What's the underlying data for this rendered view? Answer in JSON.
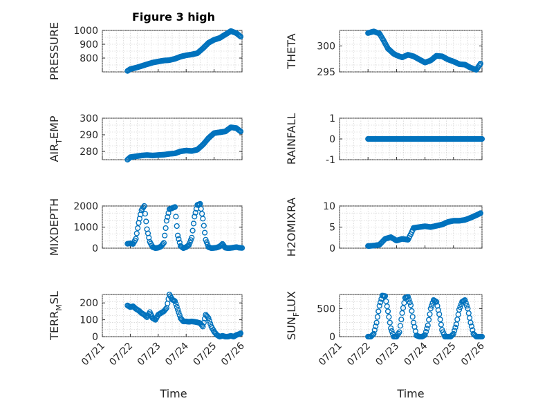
{
  "figure": {
    "title": "Figure 3 high",
    "marker_color": "#0072BD",
    "x_ticks": [
      "07/21",
      "07/22",
      "07/23",
      "07/24",
      "07/25",
      "07/26"
    ],
    "x_range_days": [
      21,
      26
    ],
    "xlabel": "Time",
    "grid": "on (major and minor)"
  },
  "chart_data": [
    {
      "id": "pressure",
      "type": "scatter",
      "ylabel_main": "PRESSURE",
      "ylabel_sub": "",
      "ylabel_tail": "",
      "ylim": [
        700,
        1000
      ],
      "yticks": [
        800,
        900,
        1000
      ],
      "x_days": [
        21.9,
        22.0,
        22.2,
        22.4,
        22.6,
        22.8,
        23.0,
        23.2,
        23.4,
        23.6,
        23.8,
        24.0,
        24.2,
        24.4,
        24.6,
        24.8,
        25.0,
        25.2,
        25.4,
        25.6,
        25.8,
        25.95
      ],
      "y": [
        707,
        720,
        730,
        742,
        755,
        767,
        775,
        782,
        785,
        795,
        810,
        820,
        826,
        835,
        870,
        910,
        932,
        945,
        970,
        995,
        980,
        955
      ]
    },
    {
      "id": "theta",
      "type": "scatter",
      "ylabel_main": "THETA",
      "ylabel_sub": "",
      "ylabel_tail": "",
      "ylim": [
        295,
        303
      ],
      "yticks": [
        295,
        300
      ],
      "x_days": [
        22.0,
        22.2,
        22.4,
        22.5,
        22.7,
        22.9,
        23.0,
        23.2,
        23.4,
        23.6,
        23.8,
        24.0,
        24.2,
        24.4,
        24.6,
        24.8,
        25.0,
        25.2,
        25.4,
        25.6,
        25.8,
        25.9,
        25.95
      ],
      "y": [
        302.5,
        302.8,
        302.4,
        301.5,
        299.5,
        298.5,
        298.2,
        297.8,
        298.3,
        298.0,
        297.4,
        296.8,
        297.2,
        298.1,
        298.0,
        297.4,
        297.0,
        296.5,
        296.4,
        295.8,
        295.4,
        296.2,
        296.6
      ]
    },
    {
      "id": "airtemp",
      "type": "scatter",
      "ylabel_main": "AIR",
      "ylabel_sub": "T",
      "ylabel_tail": "EMP",
      "ylim": [
        275,
        300
      ],
      "yticks": [
        280,
        290,
        300
      ],
      "x_days": [
        21.9,
        22.0,
        22.2,
        22.4,
        22.6,
        22.8,
        23.0,
        23.2,
        23.4,
        23.6,
        23.8,
        24.0,
        24.2,
        24.4,
        24.6,
        24.8,
        25.0,
        25.2,
        25.4,
        25.6,
        25.8,
        25.95
      ],
      "y": [
        275,
        276.5,
        277,
        277.5,
        277.8,
        277.5,
        277.8,
        278,
        278.5,
        278.8,
        280,
        280.5,
        280.2,
        281,
        284,
        288,
        291,
        291.5,
        292,
        294.5,
        294,
        292
      ]
    },
    {
      "id": "rainfall",
      "type": "scatter",
      "ylabel_main": "RAINFALL",
      "ylabel_sub": "",
      "ylabel_tail": "",
      "ylim": [
        -1,
        1
      ],
      "yticks": [
        -1,
        0,
        1
      ],
      "x_days": [
        22.0,
        22.25,
        22.5,
        22.75,
        23.0,
        23.25,
        23.5,
        23.75,
        24.0,
        24.25,
        24.5,
        24.75,
        25.0,
        25.25,
        25.5,
        25.75,
        26.0
      ],
      "y": [
        0,
        0,
        0,
        0,
        0,
        0,
        0,
        0,
        0,
        0,
        0,
        0,
        0,
        0,
        0,
        0,
        0
      ]
    },
    {
      "id": "mixdepth",
      "type": "scatter",
      "ylabel_main": "MIXDEPTH",
      "ylabel_sub": "",
      "ylabel_tail": "",
      "ylim": [
        0,
        2000
      ],
      "yticks": [
        0,
        1000,
        2000
      ],
      "x_days": [
        21.9,
        22.0,
        22.1,
        22.2,
        22.3,
        22.4,
        22.5,
        22.6,
        22.7,
        22.8,
        22.9,
        23.0,
        23.1,
        23.2,
        23.3,
        23.4,
        23.5,
        23.6,
        23.7,
        23.8,
        23.9,
        24.0,
        24.1,
        24.2,
        24.3,
        24.4,
        24.5,
        24.6,
        24.7,
        24.8,
        24.9,
        25.0,
        25.1,
        25.2,
        25.3,
        25.4,
        25.5,
        25.6,
        25.7,
        25.8,
        25.9,
        26.0
      ],
      "y": [
        210,
        230,
        200,
        450,
        1200,
        1800,
        2000,
        900,
        300,
        50,
        0,
        20,
        80,
        250,
        1300,
        1850,
        1900,
        1950,
        600,
        100,
        0,
        50,
        150,
        500,
        1500,
        2050,
        2100,
        1400,
        400,
        50,
        0,
        10,
        30,
        80,
        200,
        20,
        0,
        10,
        30,
        50,
        20,
        10
      ]
    },
    {
      "id": "h2omixra",
      "type": "scatter",
      "ylabel_main": "H2OMIXRA",
      "ylabel_sub": "",
      "ylabel_tail": "",
      "ylim": [
        0,
        10
      ],
      "yticks": [
        0,
        5,
        10
      ],
      "x_days": [
        22.0,
        22.2,
        22.4,
        22.5,
        22.6,
        22.8,
        23.0,
        23.2,
        23.4,
        23.5,
        23.6,
        23.8,
        24.0,
        24.2,
        24.4,
        24.6,
        24.8,
        25.0,
        25.2,
        25.4,
        25.6,
        25.8,
        25.95
      ],
      "y": [
        0.5,
        0.6,
        0.8,
        1.5,
        2.2,
        2.6,
        1.8,
        2.2,
        2.0,
        3.3,
        4.8,
        5.0,
        5.2,
        5.0,
        5.3,
        5.6,
        6.2,
        6.5,
        6.5,
        6.7,
        7.2,
        7.8,
        8.3
      ]
    },
    {
      "id": "terrmsl",
      "type": "scatter",
      "ylabel_main": "TERR",
      "ylabel_sub": "M",
      "ylabel_tail": "SL",
      "ylim": [
        0,
        250
      ],
      "yticks": [
        0,
        100,
        200
      ],
      "x_days": [
        21.9,
        22.0,
        22.1,
        22.2,
        22.3,
        22.4,
        22.5,
        22.6,
        22.7,
        22.8,
        22.9,
        23.0,
        23.1,
        23.2,
        23.3,
        23.4,
        23.5,
        23.6,
        23.7,
        23.8,
        23.9,
        24.0,
        24.1,
        24.2,
        24.3,
        24.4,
        24.5,
        24.6,
        24.7,
        24.8,
        24.9,
        25.0,
        25.1,
        25.2,
        25.3,
        25.4,
        25.5,
        25.6,
        25.7,
        25.8,
        25.9,
        25.95
      ],
      "y": [
        185,
        175,
        180,
        165,
        155,
        140,
        130,
        115,
        145,
        110,
        100,
        130,
        140,
        150,
        170,
        250,
        220,
        210,
        160,
        110,
        90,
        90,
        88,
        90,
        88,
        85,
        80,
        60,
        130,
        110,
        60,
        30,
        10,
        0,
        5,
        0,
        0,
        5,
        0,
        10,
        15,
        20
      ]
    },
    {
      "id": "sunflux",
      "type": "scatter",
      "ylabel_main": "SUN",
      "ylabel_sub": "F",
      "ylabel_tail": "LUX",
      "ylim": [
        0,
        750
      ],
      "yticks": [
        0,
        500
      ],
      "x_days": [
        22.0,
        22.1,
        22.2,
        22.3,
        22.4,
        22.5,
        22.6,
        22.7,
        22.8,
        22.9,
        23.0,
        23.1,
        23.2,
        23.3,
        23.4,
        23.5,
        23.6,
        23.7,
        23.8,
        23.9,
        24.0,
        24.1,
        24.2,
        24.3,
        24.4,
        24.5,
        24.6,
        24.7,
        24.8,
        24.9,
        25.0,
        25.1,
        25.2,
        25.3,
        25.4,
        25.5,
        25.6,
        25.7,
        25.8,
        25.9,
        26.0
      ],
      "y": [
        0,
        0,
        50,
        250,
        550,
        730,
        720,
        450,
        150,
        0,
        0,
        80,
        420,
        690,
        710,
        560,
        250,
        20,
        0,
        0,
        30,
        200,
        500,
        650,
        620,
        400,
        120,
        0,
        0,
        0,
        50,
        220,
        480,
        620,
        650,
        500,
        250,
        50,
        0,
        0,
        0
      ]
    }
  ]
}
